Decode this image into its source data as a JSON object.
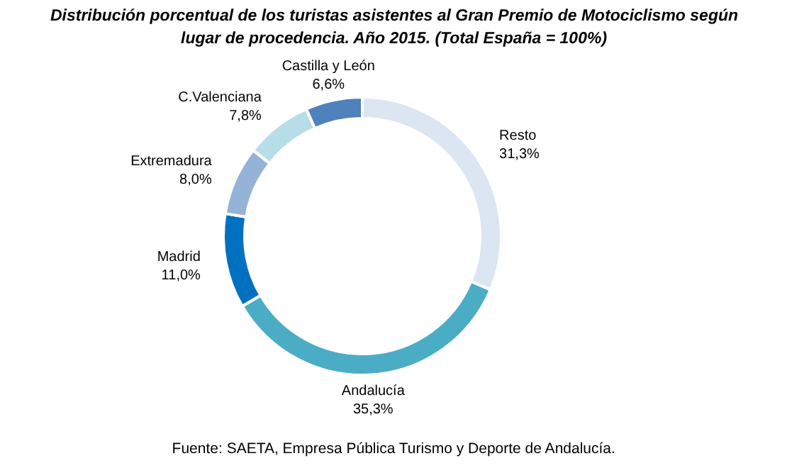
{
  "chart_data": {
    "type": "donut",
    "title": "Distribución porcentual de los turistas asistentes al Gran Premio de Motociclismo según lugar de procedencia. Año 2015. (Total España = 100%)",
    "categories": [
      "Resto",
      "Andalucía",
      "Madrid",
      "Extremadura",
      "C.Valenciana",
      "Castilla y León"
    ],
    "values": [
      31.3,
      35.3,
      11.0,
      8.0,
      7.8,
      6.6
    ],
    "value_labels": [
      "31,3%",
      "35,3%",
      "11,0%",
      "8,0%",
      "7,8%",
      "6,6%"
    ],
    "colors": [
      "#dce6f2",
      "#4bacc6",
      "#0070c0",
      "#95b3d7",
      "#b7dee8",
      "#4f81bd"
    ],
    "annotations": [
      "Fuente: SAETA, Empresa Pública Turismo y Deporte de Andalucía."
    ]
  }
}
